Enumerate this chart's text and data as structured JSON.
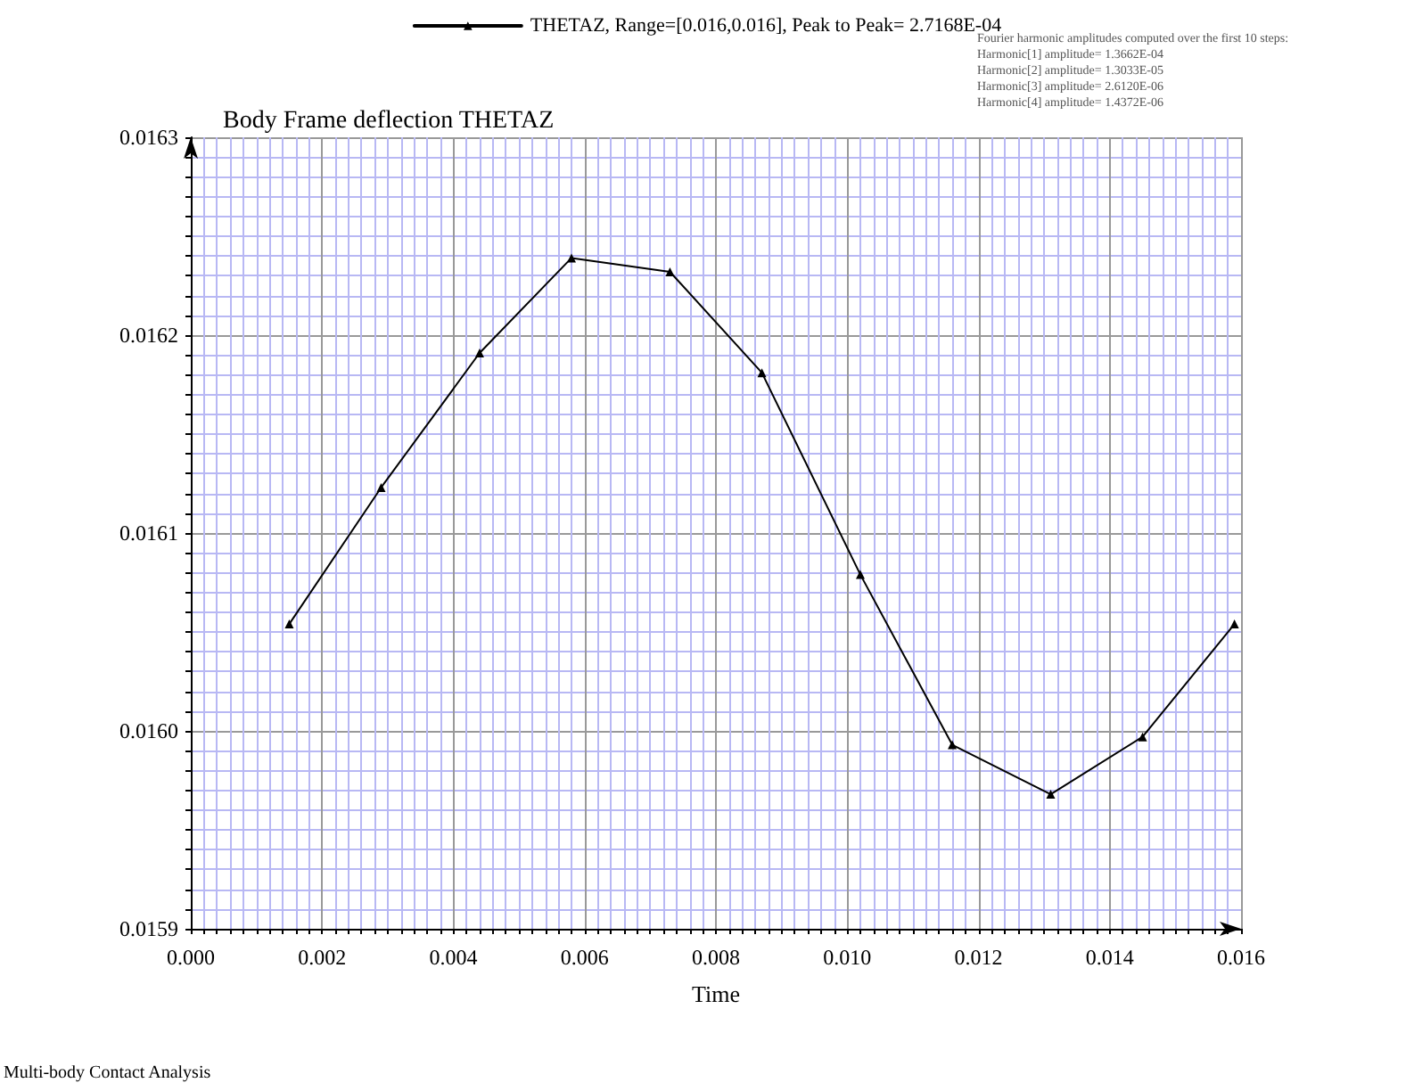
{
  "chart_data": {
    "type": "line",
    "title": "Body Frame deflection THETAZ",
    "xlabel": "Time",
    "x": [
      0.0015,
      0.0029,
      0.0044,
      0.0058,
      0.0073,
      0.0087,
      0.0102,
      0.0116,
      0.0131,
      0.0145,
      0.0159
    ],
    "series": [
      {
        "name": "THETAZ, Range=[0.016,0.016], Peak to Peak= 2.7168E-04",
        "color": "#000000",
        "values": [
          0.016054,
          0.016123,
          0.016191,
          0.016239,
          0.016232,
          0.016181,
          0.016079,
          0.015993,
          0.015968,
          0.015997,
          0.016054
        ]
      }
    ],
    "xlim": [
      0,
      0.016
    ],
    "xticks": [
      {
        "value": 0,
        "label": "0.000"
      },
      {
        "value": 0.0002,
        "label": null
      },
      {
        "value": 0.0004,
        "label": null
      },
      {
        "value": 0.0006,
        "label": null
      },
      {
        "value": 0.0008,
        "label": null
      },
      {
        "value": 0.001,
        "label": null
      },
      {
        "value": 0.0012,
        "label": null
      },
      {
        "value": 0.0014,
        "label": null
      },
      {
        "value": 0.0016,
        "label": null
      },
      {
        "value": 0.0018,
        "label": null
      },
      {
        "value": 0.002,
        "label": "0.002"
      },
      {
        "value": 0.0022,
        "label": null
      },
      {
        "value": 0.0024,
        "label": null
      },
      {
        "value": 0.0026,
        "label": null
      },
      {
        "value": 0.0028,
        "label": null
      },
      {
        "value": 0.003,
        "label": null
      },
      {
        "value": 0.0032,
        "label": null
      },
      {
        "value": 0.0034,
        "label": null
      },
      {
        "value": 0.0036,
        "label": null
      },
      {
        "value": 0.0038,
        "label": null
      },
      {
        "value": 0.004,
        "label": "0.004"
      },
      {
        "value": 0.0042,
        "label": null
      },
      {
        "value": 0.0044,
        "label": null
      },
      {
        "value": 0.0046,
        "label": null
      },
      {
        "value": 0.0048,
        "label": null
      },
      {
        "value": 0.005,
        "label": null
      },
      {
        "value": 0.0052,
        "label": null
      },
      {
        "value": 0.0054,
        "label": null
      },
      {
        "value": 0.0056,
        "label": null
      },
      {
        "value": 0.0058,
        "label": null
      },
      {
        "value": 0.006,
        "label": "0.006"
      },
      {
        "value": 0.0062,
        "label": null
      },
      {
        "value": 0.0064,
        "label": null
      },
      {
        "value": 0.0066,
        "label": null
      },
      {
        "value": 0.0068,
        "label": null
      },
      {
        "value": 0.007,
        "label": null
      },
      {
        "value": 0.0072,
        "label": null
      },
      {
        "value": 0.0074,
        "label": null
      },
      {
        "value": 0.0076,
        "label": null
      },
      {
        "value": 0.0078,
        "label": null
      },
      {
        "value": 0.008,
        "label": "0.008"
      },
      {
        "value": 0.0082,
        "label": null
      },
      {
        "value": 0.0084,
        "label": null
      },
      {
        "value": 0.0086,
        "label": null
      },
      {
        "value": 0.0088,
        "label": null
      },
      {
        "value": 0.009,
        "label": null
      },
      {
        "value": 0.0092,
        "label": null
      },
      {
        "value": 0.0094,
        "label": null
      },
      {
        "value": 0.0096,
        "label": null
      },
      {
        "value": 0.0098,
        "label": null
      },
      {
        "value": 0.01,
        "label": "0.010"
      },
      {
        "value": 0.0102,
        "label": null
      },
      {
        "value": 0.0104,
        "label": null
      },
      {
        "value": 0.0106,
        "label": null
      },
      {
        "value": 0.0108,
        "label": null
      },
      {
        "value": 0.011,
        "label": null
      },
      {
        "value": 0.0112,
        "label": null
      },
      {
        "value": 0.0114,
        "label": null
      },
      {
        "value": 0.0116,
        "label": null
      },
      {
        "value": 0.0118,
        "label": null
      },
      {
        "value": 0.012,
        "label": "0.012"
      },
      {
        "value": 0.0122,
        "label": null
      },
      {
        "value": 0.0124,
        "label": null
      },
      {
        "value": 0.0126,
        "label": null
      },
      {
        "value": 0.0128,
        "label": null
      },
      {
        "value": 0.013,
        "label": null
      },
      {
        "value": 0.0132,
        "label": null
      },
      {
        "value": 0.0134,
        "label": null
      },
      {
        "value": 0.0136,
        "label": null
      },
      {
        "value": 0.0138,
        "label": null
      },
      {
        "value": 0.014,
        "label": "0.014"
      },
      {
        "value": 0.0142,
        "label": null
      },
      {
        "value": 0.0144,
        "label": null
      },
      {
        "value": 0.0146,
        "label": null
      },
      {
        "value": 0.0148,
        "label": null
      },
      {
        "value": 0.015,
        "label": null
      },
      {
        "value": 0.0152,
        "label": null
      },
      {
        "value": 0.0154,
        "label": null
      },
      {
        "value": 0.0156,
        "label": null
      },
      {
        "value": 0.0158,
        "label": null
      },
      {
        "value": 0.016,
        "label": "0.016"
      }
    ],
    "ylim": [
      0.0159,
      0.0163
    ],
    "yticks": [
      {
        "value": 0.0159,
        "label": "0.0159"
      },
      {
        "value": 0.01591,
        "label": null
      },
      {
        "value": 0.01592,
        "label": null
      },
      {
        "value": 0.01593,
        "label": null
      },
      {
        "value": 0.01594,
        "label": null
      },
      {
        "value": 0.01595,
        "label": null
      },
      {
        "value": 0.01596,
        "label": null
      },
      {
        "value": 0.01597,
        "label": null
      },
      {
        "value": 0.01598,
        "label": null
      },
      {
        "value": 0.01599,
        "label": null
      },
      {
        "value": 0.016,
        "label": "0.0160"
      },
      {
        "value": 0.01601,
        "label": null
      },
      {
        "value": 0.01602,
        "label": null
      },
      {
        "value": 0.01603,
        "label": null
      },
      {
        "value": 0.01604,
        "label": null
      },
      {
        "value": 0.01605,
        "label": null
      },
      {
        "value": 0.01606,
        "label": null
      },
      {
        "value": 0.01607,
        "label": null
      },
      {
        "value": 0.01608,
        "label": null
      },
      {
        "value": 0.01609,
        "label": null
      },
      {
        "value": 0.0161,
        "label": "0.0161"
      },
      {
        "value": 0.01611,
        "label": null
      },
      {
        "value": 0.01612,
        "label": null
      },
      {
        "value": 0.01613,
        "label": null
      },
      {
        "value": 0.01614,
        "label": null
      },
      {
        "value": 0.01615,
        "label": null
      },
      {
        "value": 0.01616,
        "label": null
      },
      {
        "value": 0.01617,
        "label": null
      },
      {
        "value": 0.01618,
        "label": null
      },
      {
        "value": 0.01619,
        "label": null
      },
      {
        "value": 0.0162,
        "label": "0.0162"
      },
      {
        "value": 0.01621,
        "label": null
      },
      {
        "value": 0.01622,
        "label": null
      },
      {
        "value": 0.01623,
        "label": null
      },
      {
        "value": 0.01624,
        "label": null
      },
      {
        "value": 0.01625,
        "label": null
      },
      {
        "value": 0.01626,
        "label": null
      },
      {
        "value": 0.01627,
        "label": null
      },
      {
        "value": 0.01628,
        "label": null
      },
      {
        "value": 0.01629,
        "label": null
      },
      {
        "value": 0.0163,
        "label": "0.0163"
      }
    ],
    "grid": true,
    "legend": "top",
    "marker": "triangle",
    "line_style": "solid",
    "annotations": [
      "Fourier harmonic amplitudes computed over the first 10 steps:",
      "Harmonic[1] amplitude= 1.3662E-04",
      "Harmonic[2] amplitude= 1.3033E-05",
      "Harmonic[3] amplitude= 2.6120E-06",
      "Harmonic[4] amplitude= 1.4372E-06",
      "Multi-body Contact Analysis"
    ]
  }
}
